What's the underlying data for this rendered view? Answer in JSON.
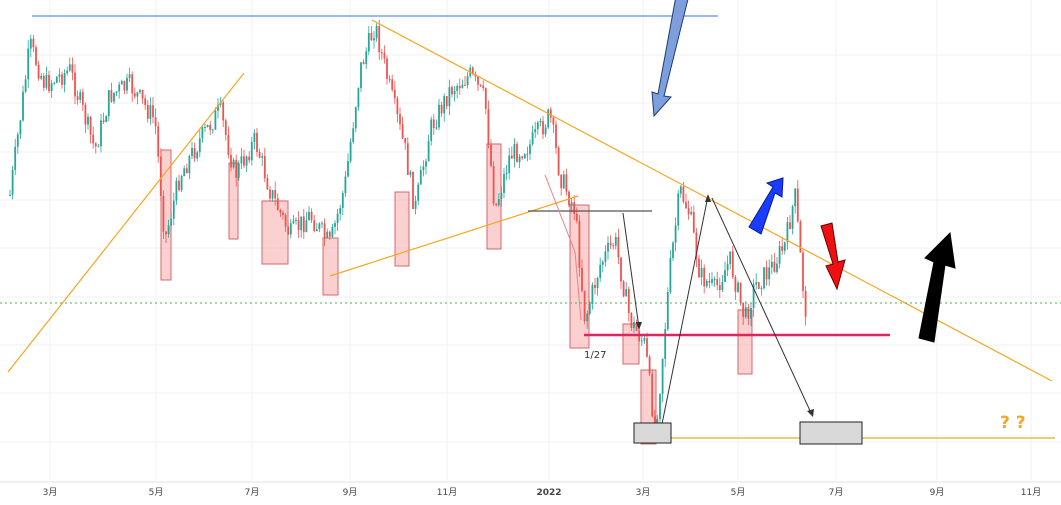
{
  "chart_data": {
    "type": "candlestick",
    "x_axis_ticks": [
      "3月",
      "5月",
      "7月",
      "9月",
      "11月",
      "2022",
      "3月",
      "5月",
      "7月",
      "9月",
      "11月"
    ],
    "annotations": {
      "date_label": "1/27",
      "question_marks": "? ?"
    },
    "colors": {
      "up": "#26a69a",
      "down": "#ef5350",
      "trendline": "#f5a623",
      "resistance_blue": "#5b8de6",
      "support_magenta": "#e0245e",
      "highlight_box": "#f4a6a6",
      "gray_box": "#d9d9d9",
      "arrow_blue": "#1a3cff",
      "arrow_red": "#ee1111",
      "arrow_black": "#000000",
      "arrow_lightblue": "#7f9fdc",
      "question_orange": "#f5a623"
    },
    "grid": true,
    "dotted_level": true
  }
}
